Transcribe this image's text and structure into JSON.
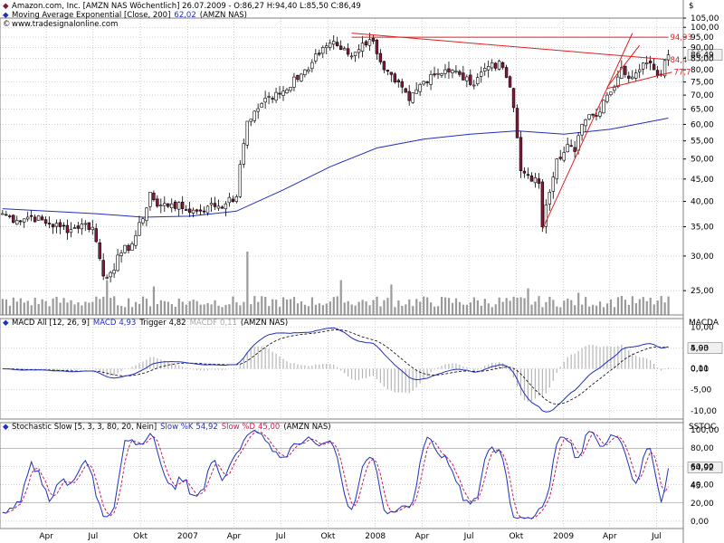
{
  "colors": {
    "background": "#ffffff",
    "grid": "#b0b0b0",
    "price_up": "#ffffff",
    "price_down": "#8b1a3a",
    "ma": "#1f2fbf",
    "trendline": "#e02020",
    "volume": "#9a9a9a",
    "macd_line": "#1f2fbf",
    "macd_signal": "#000000",
    "macd_hist": "#b5b5b5",
    "stoch_k": "#1f2fbf",
    "stoch_d": "#c21f5a",
    "label_box": "#f0f0f0"
  },
  "header": {
    "line1_icon": "diamond-icon",
    "line1": "Amazon.com, Inc. [AMZN NAS  Wöchentlich] 26.07.2009 - O:86,27 H:94,40 L:85,50 C:86,49",
    "line2_icon": "diamond-icon",
    "line2a": "Moving Average Exponential [Close, 200]",
    "line2b": "62,02",
    "line2c": "(AMZN NAS)",
    "line3_icon": "copyright-icon",
    "line3": "www.tradesignalonline.com"
  },
  "chart_data": [
    {
      "type": "candlestick",
      "title": "Amazon.com, Inc. [AMZN NAS  Wöchentlich]",
      "ylabel": "$",
      "ylim": [
        22,
        105
      ],
      "yscale": "log",
      "y_ticks": [
        "105,00",
        "100,00",
        "95,00",
        "90,00",
        "85,00",
        "80,00",
        "75,00",
        "70,00",
        "65,00",
        "60,00",
        "55,00",
        "50,00",
        "45,00",
        "40,00",
        "35,00",
        "30,00",
        "25,00"
      ],
      "x_ticks": [
        "Apr",
        "Jul",
        "Okt",
        "2007",
        "Apr",
        "Jul",
        "Okt",
        "2008",
        "Apr",
        "Jul",
        "Okt",
        "2009",
        "Apr",
        "Jul"
      ],
      "last_value_label": "86,49",
      "price_anchors": [
        {
          "date": "2006-01-06",
          "close": 37.5
        },
        {
          "date": "2006-02-03",
          "close": 36.2
        },
        {
          "date": "2006-03-03",
          "close": 37.0
        },
        {
          "date": "2006-04-07",
          "close": 35.5
        },
        {
          "date": "2006-04-28",
          "close": 35.0
        },
        {
          "date": "2006-05-19",
          "close": 34.5
        },
        {
          "date": "2006-06-09",
          "close": 35.5
        },
        {
          "date": "2006-06-30",
          "close": 34.9
        },
        {
          "date": "2006-07-21",
          "close": 27.0
        },
        {
          "date": "2006-08-04",
          "close": 27.5
        },
        {
          "date": "2006-08-25",
          "close": 30.5
        },
        {
          "date": "2006-09-15",
          "close": 32.0
        },
        {
          "date": "2006-10-06",
          "close": 36.5
        },
        {
          "date": "2006-10-20",
          "close": 42.0
        },
        {
          "date": "2006-11-03",
          "close": 39.0
        },
        {
          "date": "2006-12-01",
          "close": 39.5
        },
        {
          "date": "2006-12-22",
          "close": 38.5
        },
        {
          "date": "2007-01-19",
          "close": 38.0
        },
        {
          "date": "2007-02-09",
          "close": 39.0
        },
        {
          "date": "2007-03-16",
          "close": 39.5
        },
        {
          "date": "2007-04-06",
          "close": 41.0
        },
        {
          "date": "2007-04-27",
          "close": 61.0
        },
        {
          "date": "2007-05-25",
          "close": 67.0
        },
        {
          "date": "2007-06-22",
          "close": 71.0
        },
        {
          "date": "2007-07-13",
          "close": 72.0
        },
        {
          "date": "2007-07-27",
          "close": 77.0
        },
        {
          "date": "2007-08-24",
          "close": 80.0
        },
        {
          "date": "2007-09-21",
          "close": 90.0
        },
        {
          "date": "2007-10-12",
          "close": 93.0
        },
        {
          "date": "2007-10-26",
          "close": 89.0
        },
        {
          "date": "2007-11-16",
          "close": 86.0
        },
        {
          "date": "2007-12-07",
          "close": 92.0
        },
        {
          "date": "2007-12-28",
          "close": 93.0
        },
        {
          "date": "2008-01-18",
          "close": 80.0
        },
        {
          "date": "2008-02-08",
          "close": 75.0
        },
        {
          "date": "2008-03-07",
          "close": 68.0
        },
        {
          "date": "2008-03-21",
          "close": 72.0
        },
        {
          "date": "2008-04-18",
          "close": 78.0
        },
        {
          "date": "2008-05-16",
          "close": 80.0
        },
        {
          "date": "2008-06-13",
          "close": 78.0
        },
        {
          "date": "2008-07-04",
          "close": 74.0
        },
        {
          "date": "2008-07-25",
          "close": 79.0
        },
        {
          "date": "2008-08-15",
          "close": 83.0
        },
        {
          "date": "2008-09-05",
          "close": 81.0
        },
        {
          "date": "2008-09-19",
          "close": 73.0
        },
        {
          "date": "2008-10-10",
          "close": 47.0
        },
        {
          "date": "2008-10-24",
          "close": 46.0
        },
        {
          "date": "2008-11-14",
          "close": 44.0
        },
        {
          "date": "2008-11-21",
          "close": 35.0
        },
        {
          "date": "2008-12-05",
          "close": 42.0
        },
        {
          "date": "2008-12-19",
          "close": 50.0
        },
        {
          "date": "2009-01-09",
          "close": 54.0
        },
        {
          "date": "2009-01-23",
          "close": 52.0
        },
        {
          "date": "2009-02-06",
          "close": 60.0
        },
        {
          "date": "2009-02-27",
          "close": 63.0
        },
        {
          "date": "2009-03-13",
          "close": 64.0
        },
        {
          "date": "2009-03-27",
          "close": 70.0
        },
        {
          "date": "2009-04-17",
          "close": 77.0
        },
        {
          "date": "2009-04-24",
          "close": 81.0
        },
        {
          "date": "2009-05-15",
          "close": 77.0
        },
        {
          "date": "2009-05-29",
          "close": 80.0
        },
        {
          "date": "2009-06-12",
          "close": 83.0
        },
        {
          "date": "2009-06-26",
          "close": 80.0
        },
        {
          "date": "2009-07-10",
          "close": 78.0
        },
        {
          "date": "2009-07-17",
          "close": 84.0
        },
        {
          "date": "2009-07-24",
          "close": 86.49
        }
      ],
      "ema200_anchors": [
        {
          "date": "2006-01-06",
          "value": 38.5
        },
        {
          "date": "2006-07-07",
          "value": 37.5
        },
        {
          "date": "2006-10-06",
          "value": 36.8
        },
        {
          "date": "2007-01-05",
          "value": 37.0
        },
        {
          "date": "2007-04-06",
          "value": 38.0
        },
        {
          "date": "2007-07-06",
          "value": 42.5
        },
        {
          "date": "2007-10-05",
          "value": 48.0
        },
        {
          "date": "2008-01-04",
          "value": 53.0
        },
        {
          "date": "2008-04-04",
          "value": 55.5
        },
        {
          "date": "2008-07-04",
          "value": 57.0
        },
        {
          "date": "2008-10-03",
          "value": 58.0
        },
        {
          "date": "2009-01-02",
          "value": 57.0
        },
        {
          "date": "2009-04-03",
          "value": 58.5
        },
        {
          "date": "2009-07-24",
          "value": 62.02
        }
      ],
      "trendlines": [
        {
          "from": {
            "date": "2007-11-16",
            "value": 97.0
          },
          "to": {
            "date": "2009-07-24",
            "value": 84.4
          },
          "label": "84,4"
        },
        {
          "from": {
            "date": "2007-11-16",
            "value": 94.93
          },
          "to": {
            "date": "2009-07-24",
            "value": 94.93
          },
          "label": "94,93"
        },
        {
          "from": {
            "date": "2008-11-21",
            "value": 34.5
          },
          "to": {
            "date": "2009-05-15",
            "value": 97.0
          },
          "label": ""
        },
        {
          "from": {
            "date": "2009-03-27",
            "value": 72.5
          },
          "to": {
            "date": "2009-07-31",
            "value": 79.0
          },
          "label": "77,7"
        },
        {
          "from": {
            "date": "2009-03-27",
            "value": 73.0
          },
          "to": {
            "date": "2009-05-29",
            "value": 91.0
          },
          "label": ""
        }
      ],
      "volume_spikes": [
        {
          "date": "2006-07-28",
          "rel": 0.55
        },
        {
          "date": "2006-10-27",
          "rel": 0.45
        },
        {
          "date": "2007-04-27",
          "rel": 1.0
        },
        {
          "date": "2007-10-26",
          "rel": 0.55
        },
        {
          "date": "2008-01-31",
          "rel": 0.48
        },
        {
          "date": "2008-10-24",
          "rel": 0.42
        },
        {
          "date": "2009-01-30",
          "rel": 0.35
        },
        {
          "date": "2009-04-24",
          "rel": 0.3
        }
      ]
    },
    {
      "type": "line",
      "title": "MACD All [12, 26, 9]",
      "series": [
        {
          "name": "MACD",
          "last": "4,93"
        },
        {
          "name": "Trigger",
          "last": "4,82"
        },
        {
          "name": "MACDF",
          "last": "0,11"
        }
      ],
      "source": "(AMZN NAS)",
      "ylabel": "MACDA",
      "y_ticks": [
        "10,00",
        "5,00",
        "0,00",
        "-5,00",
        "-10,00"
      ],
      "ylim": [
        -12,
        12
      ],
      "value_labels": [
        "4,93",
        "0,11"
      ]
    },
    {
      "type": "line",
      "title": "Stochastic Slow [5, 3, 3, 80, 20, Nein]",
      "series": [
        {
          "name": "Slow %K",
          "last": "54,92"
        },
        {
          "name": "Slow %D",
          "last": "45,00"
        }
      ],
      "source": "(AMZN NAS)",
      "ylabel": "SSTOC",
      "y_ticks": [
        "100,00",
        "80,00",
        "60,00",
        "40,00",
        "20,00",
        "0,00"
      ],
      "ylim": [
        -8,
        108
      ],
      "value_labels": [
        "54,92",
        "45"
      ]
    }
  ]
}
